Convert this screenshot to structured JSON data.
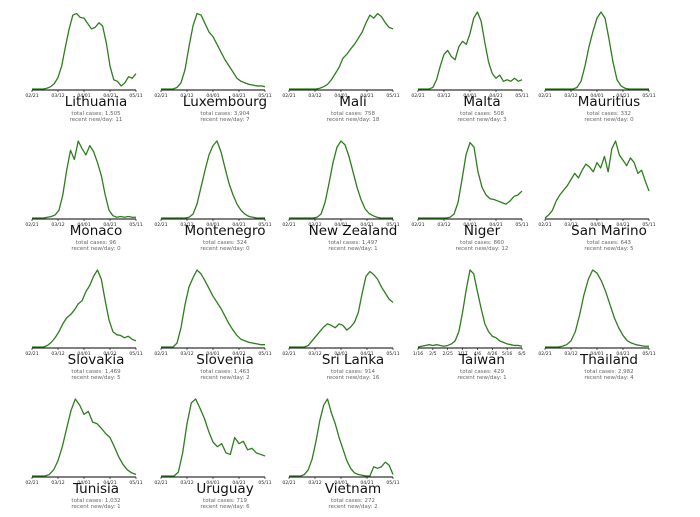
{
  "chart_data": [
    {
      "type": "line",
      "title": "Lithuania",
      "total_label": "total cases: 1,505",
      "recent_label": "recent new/day: 11",
      "x_ticks": [
        "02/21",
        "03/12",
        "04/01",
        "04/21",
        "05/11"
      ],
      "y": [
        0,
        0,
        0,
        0,
        1,
        3,
        7,
        15,
        30,
        55,
        78,
        96,
        98,
        93,
        92,
        85,
        78,
        80,
        86,
        82,
        60,
        30,
        12,
        10,
        4,
        8,
        16,
        14,
        20
      ]
    },
    {
      "type": "line",
      "title": "Luxembourg",
      "total_label": "total cases: 3,904",
      "recent_label": "recent new/day: 7",
      "x_ticks": [
        "02/21",
        "03/12",
        "04/01",
        "04/21",
        "05/11"
      ],
      "y": [
        0,
        0,
        0,
        0,
        2,
        8,
        25,
        55,
        82,
        98,
        96,
        85,
        74,
        68,
        58,
        48,
        38,
        30,
        22,
        14,
        10,
        8,
        6,
        5,
        4,
        4,
        3
      ]
    },
    {
      "type": "line",
      "title": "Mali",
      "total_label": "total cases: 758",
      "recent_label": "recent new/day: 18",
      "x_ticks": [
        "02/21",
        "03/12",
        "04/01",
        "04/21",
        "05/11"
      ],
      "y": [
        0,
        0,
        0,
        0,
        0,
        0,
        0,
        0,
        1,
        3,
        6,
        12,
        20,
        28,
        40,
        45,
        52,
        58,
        66,
        74,
        86,
        96,
        92,
        98,
        94,
        86,
        80,
        78
      ]
    },
    {
      "type": "line",
      "title": "Malta",
      "total_label": "total cases: 508",
      "recent_label": "recent new/day: 3",
      "x_ticks": [
        "02/21",
        "03/12",
        "04/01",
        "04/21",
        "05/11"
      ],
      "y": [
        0,
        0,
        0,
        0,
        2,
        12,
        30,
        45,
        50,
        42,
        38,
        55,
        62,
        58,
        72,
        92,
        100,
        88,
        60,
        35,
        20,
        14,
        18,
        10,
        12,
        10,
        14,
        10,
        12
      ]
    },
    {
      "type": "line",
      "title": "Mauritius",
      "total_label": "total cases: 332",
      "recent_label": "recent new/day: 0",
      "x_ticks": [
        "02/21",
        "03/12",
        "04/01",
        "04/21",
        "05/11"
      ],
      "y": [
        0,
        0,
        0,
        0,
        0,
        0,
        0,
        0,
        2,
        10,
        30,
        55,
        75,
        92,
        100,
        92,
        65,
        35,
        12,
        4,
        1,
        0,
        0,
        0,
        0,
        0,
        0
      ]
    },
    {
      "type": "line",
      "title": "Monaco",
      "total_label": "total cases: 96",
      "recent_label": "recent new/day: 0",
      "x_ticks": [
        "02/21",
        "03/12",
        "04/01",
        "04/21",
        "05/11"
      ],
      "y": [
        0,
        0,
        0,
        0,
        1,
        2,
        4,
        10,
        30,
        62,
        88,
        76,
        100,
        90,
        82,
        94,
        86,
        72,
        55,
        30,
        10,
        3,
        1,
        2,
        1,
        2,
        1,
        1
      ]
    },
    {
      "type": "line",
      "title": "Montenegro",
      "total_label": "total cases: 324",
      "recent_label": "recent new/day: 0",
      "x_ticks": [
        "02/21",
        "03/12",
        "04/01",
        "04/21",
        "05/11"
      ],
      "y": [
        0,
        0,
        0,
        0,
        0,
        0,
        0,
        1,
        5,
        18,
        40,
        62,
        82,
        94,
        100,
        86,
        65,
        45,
        30,
        18,
        10,
        5,
        2,
        1,
        0,
        0,
        0
      ]
    },
    {
      "type": "line",
      "title": "New Zealand",
      "total_label": "total cases: 1,497",
      "recent_label": "recent new/day: 1",
      "x_ticks": [
        "02/21",
        "03/12",
        "04/01",
        "04/21",
        "05/11"
      ],
      "y": [
        0,
        0,
        0,
        0,
        0,
        0,
        0,
        1,
        5,
        20,
        45,
        72,
        92,
        100,
        95,
        80,
        60,
        40,
        24,
        12,
        6,
        3,
        1,
        0,
        0,
        0,
        0
      ]
    },
    {
      "type": "line",
      "title": "Niger",
      "total_label": "total cases: 860",
      "recent_label": "recent new/day: 12",
      "x_ticks": [
        "02/21",
        "03/12",
        "04/01",
        "04/21",
        "05/11"
      ],
      "y": [
        0,
        0,
        0,
        0,
        0,
        0,
        0,
        0,
        1,
        5,
        20,
        50,
        82,
        98,
        92,
        60,
        40,
        30,
        25,
        24,
        22,
        20,
        18,
        22,
        28,
        30,
        35
      ]
    },
    {
      "type": "line",
      "title": "San Marino",
      "total_label": "total cases: 643",
      "recent_label": "recent new/day: 5",
      "x_ticks": [
        "02/21",
        "03/12",
        "04/01",
        "04/21",
        "05/11"
      ],
      "y": [
        0,
        4,
        10,
        22,
        30,
        36,
        42,
        50,
        58,
        52,
        62,
        70,
        66,
        60,
        72,
        65,
        80,
        60,
        90,
        100,
        82,
        75,
        68,
        78,
        72,
        58,
        62,
        48,
        35
      ]
    },
    {
      "type": "line",
      "title": "Slovakia",
      "total_label": "total cases: 1,469",
      "recent_label": "recent new/day: 5",
      "x_ticks": [
        "02/21",
        "03/12",
        "04/01",
        "04/21",
        "05/11"
      ],
      "y": [
        0,
        0,
        0,
        0,
        2,
        6,
        12,
        20,
        30,
        38,
        42,
        48,
        56,
        60,
        72,
        80,
        92,
        100,
        88,
        60,
        35,
        20,
        16,
        15,
        12,
        14,
        10,
        8
      ]
    },
    {
      "type": "line",
      "title": "Slovenia",
      "total_label": "total cases: 1,463",
      "recent_label": "recent new/day: 2",
      "x_ticks": [
        "02/21",
        "03/12",
        "04/01",
        "04/21",
        "05/11"
      ],
      "y": [
        0,
        0,
        0,
        0,
        5,
        25,
        55,
        78,
        90,
        100,
        95,
        86,
        76,
        66,
        58,
        50,
        40,
        30,
        22,
        15,
        10,
        8,
        6,
        5,
        4,
        3,
        3
      ]
    },
    {
      "type": "line",
      "title": "Sri Lanka",
      "total_label": "total cases: 914",
      "recent_label": "recent new/day: 16",
      "x_ticks": [
        "02/21",
        "03/12",
        "04/01",
        "04/21",
        "05/11"
      ],
      "y": [
        0,
        0,
        0,
        0,
        0,
        2,
        8,
        14,
        20,
        26,
        30,
        28,
        25,
        30,
        28,
        22,
        26,
        32,
        45,
        70,
        92,
        98,
        94,
        88,
        78,
        70,
        62,
        58
      ]
    },
    {
      "type": "line",
      "title": "Taiwan",
      "total_label": "total cases: 429",
      "recent_label": "recent new/day: 1",
      "x_ticks": [
        "1/16",
        "2/5",
        "2/25",
        "3/17",
        "4/6",
        "4/26",
        "5/16",
        "6/5"
      ],
      "y": [
        0,
        1,
        2,
        3,
        2,
        3,
        2,
        1,
        2,
        4,
        8,
        20,
        45,
        75,
        100,
        95,
        72,
        50,
        30,
        20,
        14,
        12,
        8,
        6,
        4,
        3,
        2,
        2,
        1
      ]
    },
    {
      "type": "line",
      "title": "Thailand",
      "total_label": "total cases: 2,982",
      "recent_label": "recent new/day: 4",
      "x_ticks": [
        "02/21",
        "03/12",
        "04/01",
        "04/21",
        "05/11"
      ],
      "y": [
        0,
        0,
        0,
        0,
        1,
        3,
        8,
        20,
        42,
        68,
        88,
        100,
        96,
        86,
        72,
        55,
        38,
        25,
        15,
        8,
        5,
        3,
        2,
        1,
        1
      ]
    },
    {
      "type": "line",
      "title": "Tunisia",
      "total_label": "total cases: 1,032",
      "recent_label": "recent new/day: 1",
      "x_ticks": [
        "02/21",
        "03/12",
        "04/01",
        "04/21",
        "05/11"
      ],
      "y": [
        0,
        0,
        0,
        0,
        2,
        8,
        20,
        38,
        62,
        85,
        100,
        92,
        80,
        84,
        70,
        68,
        62,
        55,
        50,
        38,
        25,
        15,
        8,
        4,
        2
      ]
    },
    {
      "type": "line",
      "title": "Uruguay",
      "total_label": "total cases: 719",
      "recent_label": "recent new/day: 6",
      "x_ticks": [
        "02/21",
        "03/12",
        "04/01",
        "04/21",
        "05/11"
      ],
      "y": [
        0,
        0,
        0,
        0,
        5,
        30,
        68,
        95,
        100,
        88,
        75,
        58,
        44,
        38,
        42,
        30,
        28,
        50,
        42,
        45,
        34,
        36,
        30,
        28,
        26
      ]
    },
    {
      "type": "line",
      "title": "Vietnam",
      "total_label": "total cases: 272",
      "recent_label": "recent new/day: 2",
      "x_ticks": [
        "02/21",
        "03/12",
        "04/01",
        "04/21",
        "05/11"
      ],
      "y": [
        0,
        0,
        0,
        0,
        2,
        8,
        22,
        45,
        72,
        92,
        100,
        82,
        68,
        50,
        35,
        20,
        10,
        4,
        2,
        1,
        0,
        0,
        12,
        10,
        12,
        18,
        14,
        2
      ]
    }
  ],
  "style": {
    "line_color": "#2e7d1f"
  }
}
